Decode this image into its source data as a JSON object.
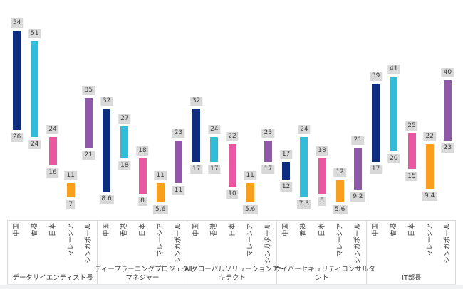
{
  "chart_data": {
    "type": "bar",
    "bar_style": "floating-range",
    "title": "",
    "xlabel": "",
    "ylabel": "",
    "ylim": [
      0,
      60
    ],
    "gridlines": false,
    "legend": "none",
    "value_labels": "min and max shown in gray boxes at bar ends",
    "countries": [
      "中国",
      "香港",
      "日本",
      "マレーシア",
      "シンガポール"
    ],
    "country_colors": [
      "#0e2d7e",
      "#31bcd9",
      "#e957a2",
      "#f8a01d",
      "#8f58a8"
    ],
    "value_label_bg": "#d9d9d9",
    "value_label_text_color": "#3f3f3f",
    "axis_border_color": "#d9d9d9",
    "groups": [
      {
        "label": "データサイエンティスト長",
        "label_lines": [
          "データサイエンティスト長"
        ],
        "bars": [
          {
            "country": "中国",
            "low": 26,
            "high": 54
          },
          {
            "country": "香港",
            "low": 24,
            "high": 51
          },
          {
            "country": "日本",
            "low": 16,
            "high": 24
          },
          {
            "country": "マレーシア",
            "low": 7,
            "high": 11
          },
          {
            "country": "シンガポール",
            "low": 21,
            "high": 35
          }
        ]
      },
      {
        "label": "ディープラーニングプロジェクトマネジャー",
        "label_lines": [
          "ディープラーニングプロジェクト",
          "マネジャー"
        ],
        "bars": [
          {
            "country": "中国",
            "low": 8.6,
            "high": 32
          },
          {
            "country": "香港",
            "low": 18,
            "high": 27
          },
          {
            "country": "日本",
            "low": 8,
            "high": 18
          },
          {
            "country": "マレーシア",
            "low": 5.6,
            "high": 11
          },
          {
            "country": "シンガポール",
            "low": 11,
            "high": 23
          }
        ]
      },
      {
        "label": "AIグローバルソリューションアーキテクト",
        "label_lines": [
          "AIグローバルソリューションアー",
          "キテクト"
        ],
        "bars": [
          {
            "country": "中国",
            "low": 17,
            "high": 32
          },
          {
            "country": "香港",
            "low": 17,
            "high": 24
          },
          {
            "country": "日本",
            "low": 10,
            "high": 22
          },
          {
            "country": "マレーシア",
            "low": 5.6,
            "high": 11
          },
          {
            "country": "シンガポール",
            "low": 17,
            "high": 23
          }
        ]
      },
      {
        "label": "サイバーセキュリティコンサルタント",
        "label_lines": [
          "サイバーセキュリティコンサルタ",
          "ント"
        ],
        "bars": [
          {
            "country": "中国",
            "low": 12,
            "high": 17
          },
          {
            "country": "香港",
            "low": 7.3,
            "high": 24
          },
          {
            "country": "日本",
            "low": 8,
            "high": 18
          },
          {
            "country": "マレーシア",
            "low": 5.6,
            "high": 12
          },
          {
            "country": "シンガポール",
            "low": 9.2,
            "high": 21
          }
        ]
      },
      {
        "label": "IT部長",
        "label_lines": [
          "IT部長"
        ],
        "bars": [
          {
            "country": "中国",
            "low": 17,
            "high": 39
          },
          {
            "country": "香港",
            "low": 20,
            "high": 41
          },
          {
            "country": "日本",
            "low": 15,
            "high": 25
          },
          {
            "country": "マレーシア",
            "low": 9.4,
            "high": 22
          },
          {
            "country": "シンガポール",
            "low": 23,
            "high": 40
          }
        ]
      }
    ]
  }
}
